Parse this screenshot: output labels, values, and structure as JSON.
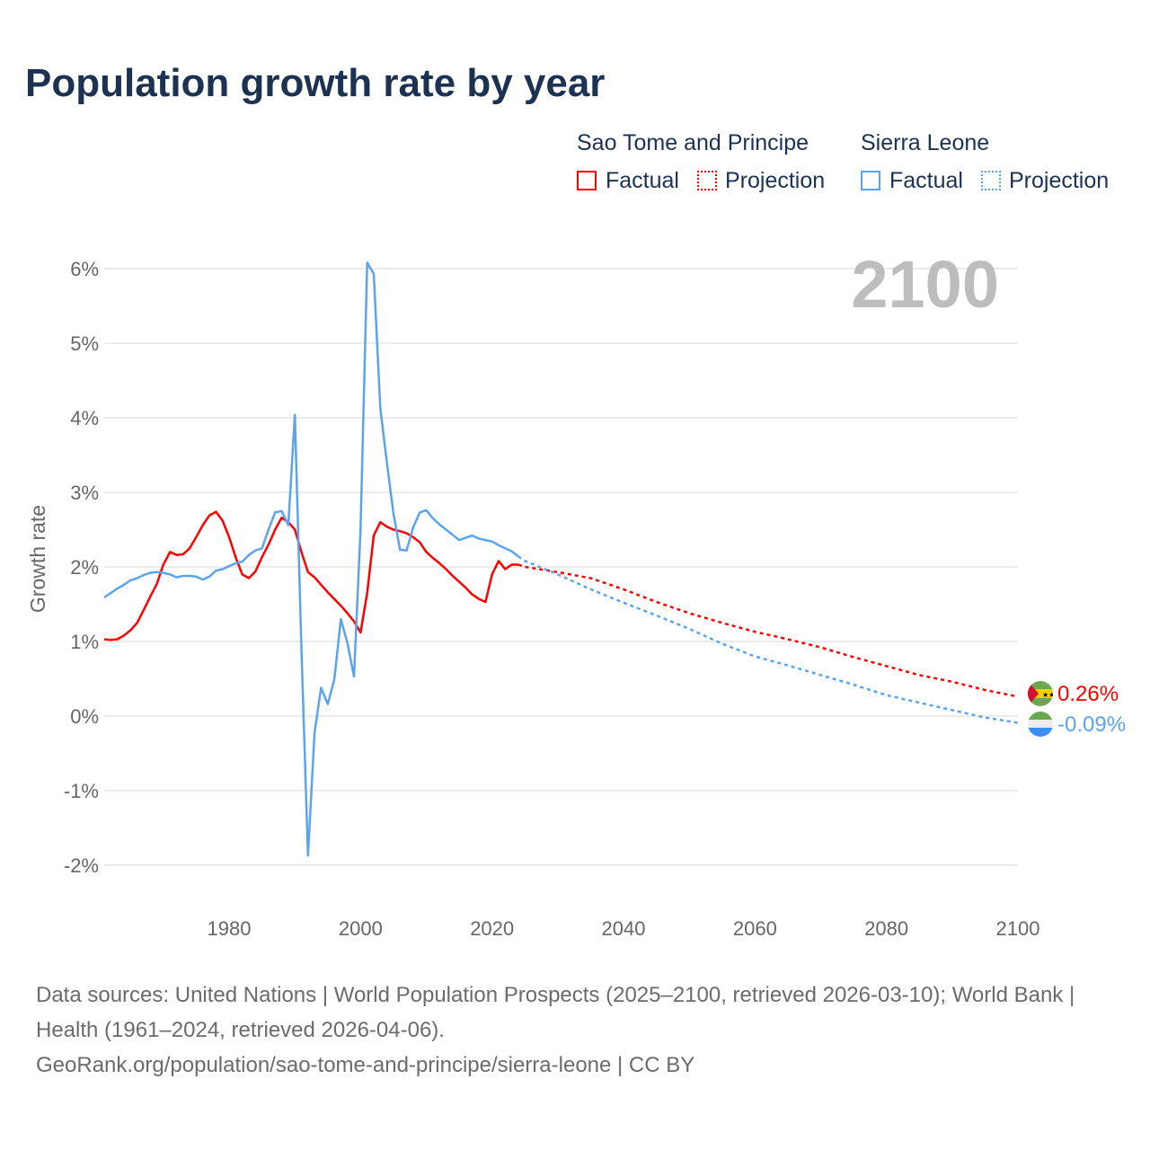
{
  "title": "Population growth rate by year",
  "legend": {
    "groups": [
      {
        "name": "Sao Tome and Principe",
        "color": "#ff0000",
        "factual": "Factual",
        "projection": "Projection"
      },
      {
        "name": "Sierra Leone",
        "color": "#5ba4ec",
        "factual": "Factual",
        "projection": "Projection"
      }
    ]
  },
  "year_watermark": "2100",
  "end_labels": [
    "0.26%",
    "-0.09%"
  ],
  "source": {
    "line1": "Data sources: United Nations | World Population Prospects (2025–2100, retrieved 2026-03-10); World Bank | Health (1961–2024, retrieved 2026-04-06).",
    "line2": "GeoRank.org/population/sao-tome-and-principe/sierra-leone | CC BY"
  },
  "chart_data": {
    "type": "line",
    "title": "Population growth rate by year",
    "xlabel": "",
    "ylabel": "Growth rate",
    "xlim": [
      1961,
      2100
    ],
    "ylim": [
      -2.4,
      6.2
    ],
    "x_ticks": [
      1980,
      2000,
      2020,
      2040,
      2060,
      2080,
      2100
    ],
    "y_ticks": [
      -2,
      -1,
      0,
      1,
      2,
      3,
      4,
      5,
      6
    ],
    "y_tick_labels": [
      "-2%",
      "-1%",
      "0%",
      "1%",
      "2%",
      "3%",
      "4%",
      "5%",
      "6%"
    ],
    "grid": true,
    "series": [
      {
        "name": "Sao Tome and Principe",
        "color": "#ff0000",
        "factual_start": 1961,
        "factual": [
          1.03,
          1.02,
          1.03,
          1.08,
          1.15,
          1.25,
          1.42,
          1.6,
          1.77,
          2.03,
          2.2,
          2.16,
          2.17,
          2.25,
          2.4,
          2.56,
          2.69,
          2.74,
          2.62,
          2.4,
          2.13,
          1.9,
          1.85,
          1.94,
          2.13,
          2.3,
          2.5,
          2.66,
          2.6,
          2.5,
          2.2,
          1.93,
          1.86,
          1.76,
          1.66,
          1.57,
          1.48,
          1.38,
          1.27,
          1.12,
          1.65,
          2.42,
          2.6,
          2.54,
          2.5,
          2.48,
          2.45,
          2.4,
          2.33,
          2.2,
          2.12,
          2.05,
          1.97,
          1.88,
          1.8,
          1.72,
          1.63,
          1.57,
          1.53,
          1.9,
          2.08,
          1.97,
          2.03,
          2.03
        ],
        "projection_years": [
          2024,
          2025,
          2030,
          2035,
          2040,
          2045,
          2050,
          2055,
          2060,
          2065,
          2070,
          2075,
          2080,
          2085,
          2090,
          2095,
          2100
        ],
        "projection": [
          2.03,
          2.0,
          1.93,
          1.85,
          1.7,
          1.53,
          1.38,
          1.25,
          1.13,
          1.03,
          0.92,
          0.79,
          0.67,
          0.55,
          0.46,
          0.35,
          0.26
        ],
        "end_value": 0.26
      },
      {
        "name": "Sierra Leone",
        "color": "#5ba4ec",
        "factual_start": 1961,
        "factual": [
          1.59,
          1.65,
          1.71,
          1.76,
          1.82,
          1.85,
          1.89,
          1.92,
          1.93,
          1.92,
          1.9,
          1.86,
          1.88,
          1.88,
          1.87,
          1.83,
          1.87,
          1.95,
          1.97,
          2.01,
          2.05,
          2.07,
          2.16,
          2.22,
          2.25,
          2.5,
          2.73,
          2.75,
          2.56,
          4.04,
          0.9,
          -1.87,
          -0.22,
          0.38,
          0.16,
          0.49,
          1.3,
          0.98,
          0.53,
          2.5,
          6.08,
          5.93,
          4.13,
          3.4,
          2.72,
          2.23,
          2.22,
          2.53,
          2.73,
          2.76,
          2.65,
          2.57,
          2.5,
          2.43,
          2.36,
          2.39,
          2.42,
          2.38,
          2.36,
          2.34,
          2.29,
          2.25,
          2.21,
          2.14
        ],
        "projection_years": [
          2024,
          2025,
          2030,
          2035,
          2040,
          2045,
          2050,
          2055,
          2060,
          2065,
          2070,
          2075,
          2080,
          2085,
          2090,
          2095,
          2100
        ],
        "projection": [
          2.14,
          2.08,
          1.9,
          1.7,
          1.52,
          1.35,
          1.17,
          0.97,
          0.8,
          0.68,
          0.55,
          0.42,
          0.28,
          0.18,
          0.08,
          -0.02,
          -0.09
        ],
        "end_value": -0.09
      }
    ]
  }
}
